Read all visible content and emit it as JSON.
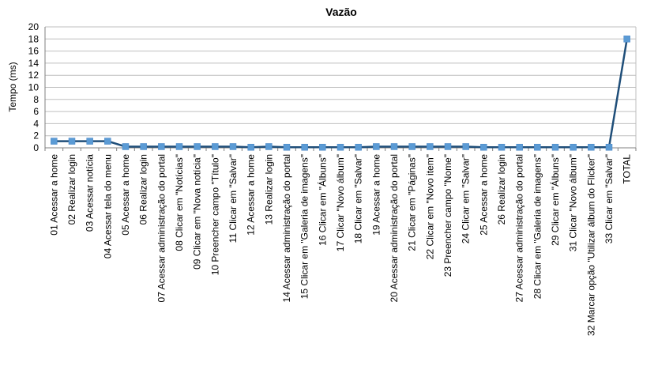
{
  "chart_data": {
    "type": "line",
    "title": "Vazão",
    "xlabel": "",
    "ylabel": "Tempo (ms)",
    "ylim": [
      0,
      20
    ],
    "ytick_step": 2,
    "grid": true,
    "legend": "none",
    "colors": {
      "line": "#1f4e79",
      "marker": "#5b9bd5",
      "grid": "#bfbfbf",
      "axis": "#808080"
    },
    "categories": [
      "01 Acessar a home",
      "02 Realizar login",
      "03 Acessar notícia",
      "04 Acessar tela do menu",
      "05 Acessar a home",
      "06 Realizar login",
      "07 Acessar administração do portal",
      "08 Clicar em \"Notícias\"",
      "09 Clicar em \"Nova notícia\"",
      "10 Preencher campo \"Título\"",
      "11 Clicar em \"Salvar\"",
      "12 Acessar a home",
      "13 Realizar login",
      "14 Acessar administração do portal",
      "15 Clicar em \"Galeria de imagens\"",
      "16 Clicar em \"Álbuns\"",
      "17 Clicar \"Novo álbum\"",
      "18 Clicar em \"Salvar\"",
      "19 Acessar a home",
      "20 Acessar administração do portal",
      "21 Clicar em \"Páginas\"",
      "22 Clicar em \"Novo item\"",
      "23 Preencher campo \"Nome\"",
      "24 Clicar em \"Salvar\"",
      "25 Acessar a home",
      "26 Realizar login",
      "27 Acessar administração do portal",
      "28 Clicar em \"Galeria de imagens\"",
      "29 Clicar em \"Álbuns\"",
      "31 Clicar \"Novo álbum\"",
      "32 Marcar opção \"Utilizar álbum do Flicker\"",
      "33 Clicar em \"Salvar\"",
      "TOTAL"
    ],
    "series": [
      {
        "values": [
          1.1,
          1.1,
          1.1,
          1.1,
          0.2,
          0.2,
          0.2,
          0.2,
          0.2,
          0.2,
          0.2,
          0.1,
          0.2,
          0.1,
          0.1,
          0.1,
          0.1,
          0.1,
          0.2,
          0.2,
          0.2,
          0.2,
          0.2,
          0.2,
          0.1,
          0.1,
          0.1,
          0.1,
          0.1,
          0.1,
          0.1,
          0.1,
          18.0
        ]
      }
    ]
  }
}
